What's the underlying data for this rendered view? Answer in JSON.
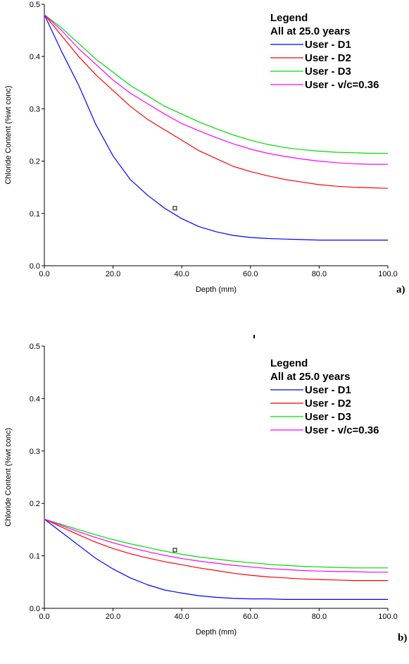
{
  "chart_data": [
    {
      "type": "line",
      "panel_label": "a)",
      "xlabel": "Depth (mm)",
      "ylabel": "Chloride Content (%wt conc)",
      "xlim": [
        0,
        100
      ],
      "ylim": [
        0,
        0.5
      ],
      "xticks": [
        "0.0",
        "20.0",
        "40.0",
        "60.0",
        "80.0",
        "100.0"
      ],
      "yticks": [
        "0.0",
        "0.1",
        "0.2",
        "0.3",
        "0.4",
        "0.5"
      ],
      "legend_title": [
        "Legend",
        "All at 25.0 years"
      ],
      "legend_position": "top-right",
      "x": [
        0,
        5,
        10,
        15,
        20,
        25,
        30,
        35,
        40,
        45,
        50,
        55,
        60,
        65,
        70,
        75,
        80,
        85,
        90,
        95,
        100
      ],
      "series": [
        {
          "name": "User - D1",
          "color": "#0000ff",
          "values": [
            0.48,
            0.41,
            0.345,
            0.27,
            0.21,
            0.165,
            0.135,
            0.11,
            0.09,
            0.075,
            0.065,
            0.058,
            0.054,
            0.052,
            0.051,
            0.05,
            0.049,
            0.049,
            0.049,
            0.049,
            0.049
          ]
        },
        {
          "name": "User - D2",
          "color": "#ff0000",
          "values": [
            0.48,
            0.44,
            0.4,
            0.365,
            0.335,
            0.305,
            0.28,
            0.26,
            0.24,
            0.22,
            0.205,
            0.19,
            0.18,
            0.172,
            0.165,
            0.16,
            0.155,
            0.152,
            0.15,
            0.149,
            0.148
          ]
        },
        {
          "name": "User - D3",
          "color": "#00dd00",
          "values": [
            0.48,
            0.455,
            0.425,
            0.395,
            0.37,
            0.345,
            0.325,
            0.305,
            0.29,
            0.275,
            0.262,
            0.25,
            0.24,
            0.232,
            0.226,
            0.222,
            0.219,
            0.217,
            0.216,
            0.215,
            0.215
          ]
        },
        {
          "name": "User - v/c=0.36",
          "color": "#ff00ff",
          "values": [
            0.48,
            0.45,
            0.415,
            0.385,
            0.355,
            0.33,
            0.31,
            0.29,
            0.272,
            0.258,
            0.245,
            0.233,
            0.223,
            0.215,
            0.209,
            0.204,
            0.2,
            0.197,
            0.195,
            0.194,
            0.194
          ]
        }
      ],
      "markers": [
        {
          "x": 38,
          "y": 0.11
        }
      ]
    },
    {
      "type": "line",
      "panel_label": "b)",
      "xlabel": "Depth (mm)",
      "ylabel": "Chloride Content (%wt conc)",
      "xlim": [
        0,
        100
      ],
      "ylim": [
        0,
        0.5
      ],
      "xticks": [
        "0.0",
        "20.0",
        "40.0",
        "60.0",
        "80.0",
        "100.0"
      ],
      "yticks": [
        "0.0",
        "0.1",
        "0.2",
        "0.3",
        "0.4",
        "0.5"
      ],
      "legend_title": [
        "Legend",
        "All at 25.0 years"
      ],
      "legend_position": "top-right",
      "x": [
        0,
        5,
        10,
        15,
        20,
        25,
        30,
        35,
        40,
        45,
        50,
        55,
        60,
        65,
        70,
        75,
        80,
        85,
        90,
        95,
        100
      ],
      "series": [
        {
          "name": "User - D1",
          "color": "#0000ff",
          "values": [
            0.17,
            0.145,
            0.12,
            0.095,
            0.075,
            0.058,
            0.045,
            0.035,
            0.029,
            0.024,
            0.021,
            0.019,
            0.018,
            0.018,
            0.017,
            0.017,
            0.017,
            0.017,
            0.017,
            0.017,
            0.017
          ]
        },
        {
          "name": "User - D2",
          "color": "#ff0000",
          "values": [
            0.17,
            0.155,
            0.14,
            0.126,
            0.114,
            0.104,
            0.096,
            0.089,
            0.083,
            0.077,
            0.072,
            0.067,
            0.063,
            0.06,
            0.058,
            0.056,
            0.055,
            0.054,
            0.053,
            0.053,
            0.053
          ]
        },
        {
          "name": "User - D3",
          "color": "#00dd00",
          "values": [
            0.17,
            0.16,
            0.15,
            0.14,
            0.131,
            0.123,
            0.116,
            0.109,
            0.103,
            0.098,
            0.094,
            0.09,
            0.087,
            0.084,
            0.082,
            0.08,
            0.079,
            0.078,
            0.077,
            0.077,
            0.077
          ]
        },
        {
          "name": "User - v/c=0.36",
          "color": "#ff00ff",
          "values": [
            0.17,
            0.158,
            0.146,
            0.135,
            0.125,
            0.116,
            0.108,
            0.101,
            0.095,
            0.09,
            0.086,
            0.082,
            0.079,
            0.076,
            0.074,
            0.072,
            0.071,
            0.07,
            0.07,
            0.069,
            0.069
          ]
        }
      ],
      "markers": [
        {
          "x": 38,
          "y": 0.111
        }
      ]
    }
  ]
}
